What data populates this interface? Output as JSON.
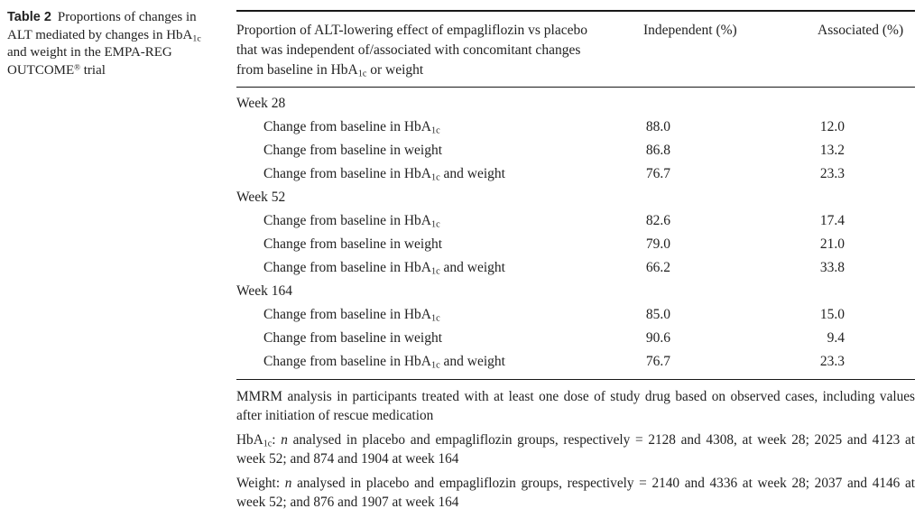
{
  "caption": {
    "label": "Table 2",
    "p1": "Proportions of changes in ALT mediated by changes in HbA",
    "sub1": "1c",
    "p2": " and weight in the EMPA-REG OUTCOME",
    "sup1": "®",
    "p3": " trial"
  },
  "table": {
    "header": {
      "col1_p1": "Proportion of ALT-lowering effect of empagliflozin vs placebo that was independent of/associated with concomitant changes from baseline in HbA",
      "col1_sub": "1c",
      "col1_p2": " or weight",
      "col2": "Independent (%)",
      "col3": "Associated (%)"
    },
    "sections": [
      {
        "title": "Week 28",
        "rows": [
          {
            "label_pre": "Change from baseline in HbA",
            "label_sub": "1c",
            "label_post": "",
            "independent": "88.0",
            "associated": "12.0"
          },
          {
            "label_pre": "Change from baseline in weight",
            "label_sub": "",
            "label_post": "",
            "independent": "86.8",
            "associated": "13.2"
          },
          {
            "label_pre": "Change from baseline in HbA",
            "label_sub": "1c",
            "label_post": " and weight",
            "independent": "76.7",
            "associated": "23.3"
          }
        ]
      },
      {
        "title": "Week 52",
        "rows": [
          {
            "label_pre": "Change from baseline in HbA",
            "label_sub": "1c",
            "label_post": "",
            "independent": "82.6",
            "associated": "17.4"
          },
          {
            "label_pre": "Change from baseline in weight",
            "label_sub": "",
            "label_post": "",
            "independent": "79.0",
            "associated": "21.0"
          },
          {
            "label_pre": "Change from baseline in HbA",
            "label_sub": "1c",
            "label_post": " and weight",
            "independent": "66.2",
            "associated": "33.8"
          }
        ]
      },
      {
        "title": "Week 164",
        "rows": [
          {
            "label_pre": "Change from baseline in HbA",
            "label_sub": "1c",
            "label_post": "",
            "independent": "85.0",
            "associated": "15.0"
          },
          {
            "label_pre": "Change from baseline in weight",
            "label_sub": "",
            "label_post": "",
            "independent": "90.6",
            "associated": "9.4"
          },
          {
            "label_pre": "Change from baseline in HbA",
            "label_sub": "1c",
            "label_post": " and weight",
            "independent": "76.7",
            "associated": "23.3"
          }
        ]
      }
    ]
  },
  "footnotes": {
    "fn1": "MMRM analysis in participants treated with at least one dose of study drug based on observed cases, including values after initiation of rescue medication",
    "fn2": {
      "head": "HbA",
      "head_sub": "1c",
      "sep": ": ",
      "n": "n",
      "rest": " analysed in placebo and empagliflozin groups, respectively = 2128 and 4308, at week 28; 2025 and 4123 at week 52; and 874 and 1904 at week 164"
    },
    "fn3": {
      "head": "Weight",
      "head_sub": "",
      "sep": ": ",
      "n": "n",
      "rest": " analysed in placebo and empagliflozin groups, respectively = 2140 and 4336 at week 28; 2037 and 4146 at week 52; and 876 and 1907 at week 164"
    }
  },
  "colors": {
    "text": "#222222",
    "rule": "#181818",
    "background": "#ffffff"
  }
}
